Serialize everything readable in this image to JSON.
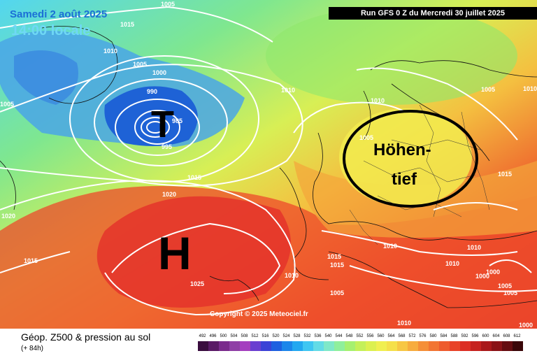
{
  "header": {
    "date_label": "Samedi 2 août 2025",
    "time_label": "14:00 locale",
    "run_label": "Run GFS 0 Z du Mercredi 30 juillet 2025"
  },
  "map": {
    "low_symbol": "T",
    "high_symbol": "H",
    "annotation_line1": "Höhen-",
    "annotation_line2": "tief",
    "copyright": "Copyright © 2025 Meteociel.fr"
  },
  "pressure_labels": [
    {
      "text": "1005"
    },
    {
      "text": "1015"
    },
    {
      "text": "1010"
    },
    {
      "text": "1005"
    },
    {
      "text": "1000"
    },
    {
      "text": "990"
    },
    {
      "text": "985"
    },
    {
      "text": "995"
    },
    {
      "text": "1005"
    },
    {
      "text": "1010"
    },
    {
      "text": "1010"
    },
    {
      "text": "1005"
    },
    {
      "text": "1015"
    },
    {
      "text": "1020"
    },
    {
      "text": "1020"
    },
    {
      "text": "1015"
    },
    {
      "text": "1025"
    },
    {
      "text": "1015"
    },
    {
      "text": "1010"
    },
    {
      "text": "1010"
    },
    {
      "text": "1010"
    },
    {
      "text": "1010"
    },
    {
      "text": "1005"
    },
    {
      "text": "1000"
    },
    {
      "text": "1000"
    },
    {
      "text": "1005"
    },
    {
      "text": "1005"
    },
    {
      "text": "1015"
    },
    {
      "text": "1005"
    },
    {
      "text": "1010"
    },
    {
      "text": "1015"
    },
    {
      "text": "1010"
    },
    {
      "text": "1000"
    }
  ],
  "footer": {
    "title": "Géop. Z500 & pression au sol",
    "subtitle": "(+ 84h)"
  },
  "legend": {
    "ticks": [
      "492",
      "496",
      "500",
      "504",
      "508",
      "512",
      "516",
      "520",
      "524",
      "528",
      "532",
      "536",
      "540",
      "544",
      "548",
      "552",
      "556",
      "560",
      "564",
      "568",
      "572",
      "576",
      "580",
      "584",
      "588",
      "592",
      "596",
      "600",
      "604",
      "608",
      "612"
    ],
    "colors": [
      "#3a0d3f",
      "#5a1a66",
      "#7a2b8c",
      "#8f3fa6",
      "#a43fbf",
      "#6a3fd0",
      "#3b42d6",
      "#1e60e0",
      "#1c86ea",
      "#23a8f0",
      "#3fc6f2",
      "#63dbe6",
      "#7fe8c8",
      "#8fef9c",
      "#a6f070",
      "#c4f05a",
      "#dcf050",
      "#f0ef50",
      "#f5e04a",
      "#f7c744",
      "#f7ac3e",
      "#f58f38",
      "#f27532",
      "#ee5b2d",
      "#e84328",
      "#dc2e24",
      "#c6221f",
      "#a9181a",
      "#8a1216",
      "#650c10",
      "#3a0608"
    ]
  }
}
